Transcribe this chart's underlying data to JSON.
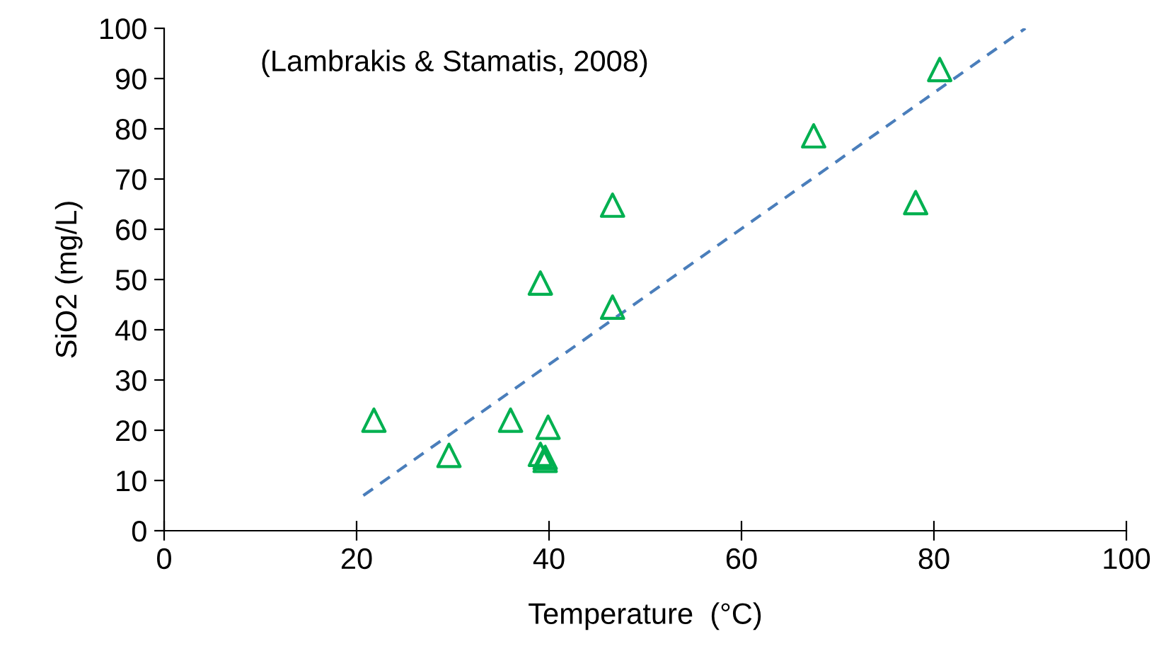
{
  "chart_data": {
    "type": "scatter",
    "xlabel": "Temperature  (°C)",
    "ylabel": "SiO2 (mg/L)",
    "annotations": [
      "(Lambrakis & Stamatis, 2008)"
    ],
    "xlim": [
      0,
      100
    ],
    "xticks": [
      0,
      20,
      40,
      60,
      80,
      100
    ],
    "ylim": [
      0,
      100
    ],
    "yticks": [
      0,
      10,
      20,
      30,
      40,
      50,
      60,
      70,
      80,
      90,
      100
    ],
    "grid": false,
    "legend": false,
    "series": [
      {
        "color": "#00b050",
        "marker": "triangle",
        "x": [
          21.8,
          29.6,
          36.0,
          39.9,
          39.1,
          39.6,
          39.6,
          39.1,
          46.6,
          46.6,
          67.5,
          80.6,
          78.1
        ],
        "values": [
          22,
          15,
          22,
          20.6,
          15.2,
          14.6,
          14,
          49.3,
          64.8,
          44.5,
          78.6,
          91.8,
          65.3
        ]
      },
      {
        "type": "line",
        "color": "#4a7ebb",
        "line_style": "dashed",
        "marker": "none",
        "x": [
          20.7,
          89.5
        ],
        "values": [
          7,
          100
        ]
      }
    ]
  }
}
